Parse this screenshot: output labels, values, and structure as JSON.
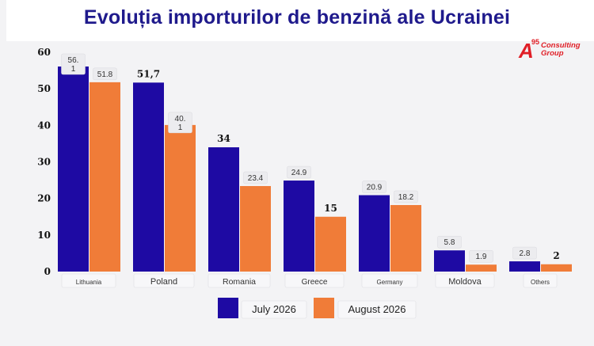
{
  "colors": {
    "title": "#1f1a8c",
    "series1": "#1e0aa3",
    "series2": "#f07c38",
    "logo": "#e01e26"
  },
  "logo": {
    "letter": "A",
    "superscript": "95",
    "line1": "Consulting",
    "line2": "Group"
  },
  "chart_data": {
    "type": "bar",
    "title": "Evoluția importurilor de benzină ale Ucrainei",
    "categories": [
      "Lithuania",
      "Poland",
      "Romania",
      "Greece",
      "Germany",
      "Moldova",
      "Others"
    ],
    "series": [
      {
        "name": "July 2026",
        "values": [
          56.1,
          51.7,
          34,
          24.9,
          20.9,
          5.8,
          2.8
        ]
      },
      {
        "name": "August 2026",
        "values": [
          51.8,
          40.1,
          23.4,
          15,
          18.2,
          1.9,
          2
        ]
      }
    ],
    "data_labels": [
      [
        "56.\n1",
        "51,7",
        "34",
        "24.9",
        "20.9",
        "5.8",
        "2.8"
      ],
      [
        "51.8",
        "40.\n1",
        "23.4",
        "15",
        "18.2",
        "1.9",
        "2"
      ]
    ],
    "yticks": [
      "0",
      "10",
      "20",
      "30",
      "40",
      "50",
      "60"
    ],
    "ylim": [
      0,
      60
    ],
    "legend": "bottom-center",
    "grid": false
  }
}
